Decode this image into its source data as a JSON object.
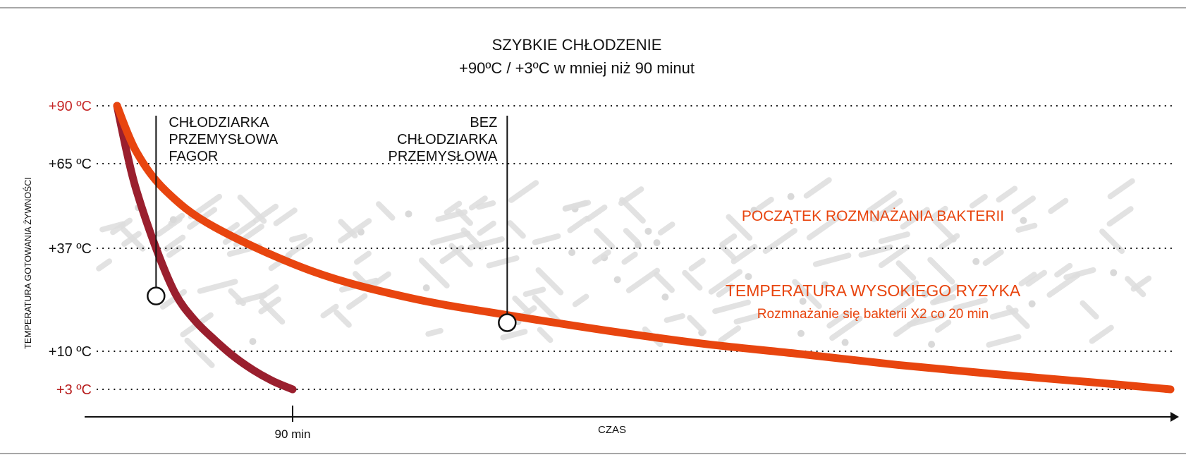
{
  "chart_data": {
    "type": "line",
    "title": "SZYBKIE CHŁODZENIE",
    "subtitle": "+90ºC / +3ºC w mniej niż 90 minut",
    "ylabel": "TEMPERATURA GOTOWANIA ŻYWNOŚCI",
    "xlabel": "CZAS",
    "y_ticks": [
      {
        "value": 90,
        "label": "+90 ºC",
        "color": "#c62828"
      },
      {
        "value": 65,
        "label": "+65 ºC",
        "color": "#111111"
      },
      {
        "value": 37,
        "label": "+37 ºC",
        "color": "#111111"
      },
      {
        "value": 10,
        "label": "+10 ºC",
        "color": "#111111"
      },
      {
        "value": 3,
        "label": "+3 ºC",
        "color": "#b71c1c"
      }
    ],
    "x_ticks": [
      {
        "value": 90,
        "label": "90 min"
      }
    ],
    "grid": "dotted horizontal at y ticks",
    "series": [
      {
        "name": "CHŁODZIARKA PRZEMYSŁOWA FAGOR",
        "color": "#9a1f2e",
        "x": [
          0,
          5,
          10,
          20,
          30,
          40,
          50,
          60,
          70,
          80,
          90
        ],
        "y": [
          90,
          70,
          56,
          37,
          25,
          18,
          13,
          9,
          6.5,
          4.5,
          3
        ]
      },
      {
        "name": "BEZ CHŁODZIARKA PRZEMYSŁOWA",
        "color": "#e8450f",
        "x": [
          0,
          10,
          25,
          50,
          100,
          150,
          200,
          250,
          300,
          350,
          400,
          450,
          500,
          540
        ],
        "y": [
          90,
          70,
          56,
          44,
          31,
          24,
          19.5,
          15.5,
          12,
          9.5,
          7.5,
          5.8,
          4.3,
          3
        ]
      }
    ],
    "markers": [
      {
        "series": 0,
        "x": 20,
        "y": 24.5,
        "label_lines": [
          "CHŁODZIARKA",
          "PRZEMYSŁOWA",
          "FAGOR"
        ],
        "align": "left"
      },
      {
        "series": 1,
        "x": 200,
        "y": 17.5,
        "label_lines": [
          "BEZ",
          "CHŁODZIARKA",
          "PRZEMYSŁOWA"
        ],
        "align": "right"
      }
    ],
    "annotations": [
      {
        "text": "POCZĄTEK ROZMNAŻANIA BAKTERII",
        "color": "#e8450f"
      },
      {
        "text": "TEMPERATURA WYSOKIEGO RYZYKA",
        "color": "#e8450f"
      },
      {
        "text": "Rozmnażanie się bakterii X2 co 20 min",
        "color": "#e8450f"
      }
    ],
    "risk_zone": {
      "y_range": [
        10,
        65
      ]
    },
    "xlim": [
      0,
      540
    ],
    "ylim": [
      3,
      90
    ]
  }
}
